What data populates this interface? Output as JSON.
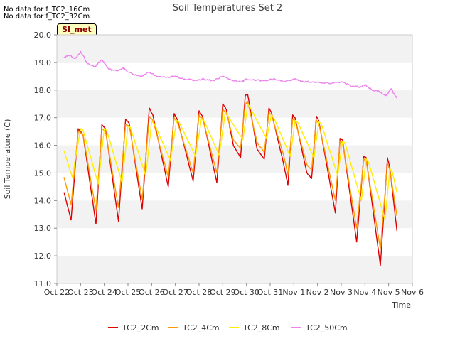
{
  "notes": [
    "No data for f_TC2_16Cm",
    "No data for f_TC2_32Cm"
  ],
  "badge_label": "SI_met",
  "chart_data": {
    "type": "line",
    "title": "Soil Temperatures Set 2",
    "xlabel": "Time",
    "ylabel": "Soil Temperature (C)",
    "ylim": [
      11.0,
      20.0
    ],
    "yticks": [
      "11.0",
      "12.0",
      "13.0",
      "14.0",
      "15.0",
      "16.0",
      "17.0",
      "18.0",
      "19.0",
      "20.0"
    ],
    "xlim_days": [
      0,
      15
    ],
    "xticks": [
      "Oct 22",
      "Oct 23",
      "Oct 24",
      "Oct 25",
      "Oct 26",
      "Oct 27",
      "Oct 28",
      "Oct 29",
      "Oct 30",
      "Oct 31",
      "Nov 1",
      "Nov 2",
      "Nov 3",
      "Nov 4",
      "Nov 5",
      "Nov 6"
    ],
    "legend_position": "bottom",
    "grid": "alternating horizontal bands",
    "series": [
      {
        "name": "TC2_2Cm",
        "color": "#dd0000",
        "points": [
          [
            0.3,
            14.3
          ],
          [
            0.6,
            13.3
          ],
          [
            0.9,
            16.6
          ],
          [
            1.1,
            16.4
          ],
          [
            1.65,
            13.15
          ],
          [
            1.9,
            16.75
          ],
          [
            2.05,
            16.6
          ],
          [
            2.6,
            13.25
          ],
          [
            2.9,
            16.95
          ],
          [
            3.05,
            16.8
          ],
          [
            3.6,
            13.7
          ],
          [
            3.9,
            17.35
          ],
          [
            4.05,
            17.1
          ],
          [
            4.7,
            14.5
          ],
          [
            4.95,
            17.15
          ],
          [
            5.1,
            16.9
          ],
          [
            5.75,
            14.7
          ],
          [
            6.0,
            17.25
          ],
          [
            6.15,
            17.05
          ],
          [
            6.75,
            14.65
          ],
          [
            7.0,
            17.5
          ],
          [
            7.15,
            17.3
          ],
          [
            7.45,
            16.0
          ],
          [
            7.75,
            15.55
          ],
          [
            7.95,
            17.8
          ],
          [
            8.05,
            17.85
          ],
          [
            8.45,
            15.85
          ],
          [
            8.75,
            15.5
          ],
          [
            8.95,
            17.35
          ],
          [
            9.05,
            17.2
          ],
          [
            9.55,
            15.4
          ],
          [
            9.75,
            14.55
          ],
          [
            9.95,
            17.1
          ],
          [
            10.05,
            17.0
          ],
          [
            10.55,
            15.0
          ],
          [
            10.75,
            14.8
          ],
          [
            10.95,
            17.05
          ],
          [
            11.05,
            16.9
          ],
          [
            11.75,
            13.55
          ],
          [
            11.95,
            16.25
          ],
          [
            12.05,
            16.2
          ],
          [
            12.65,
            12.5
          ],
          [
            12.95,
            15.6
          ],
          [
            13.05,
            15.55
          ],
          [
            13.65,
            11.65
          ],
          [
            13.95,
            15.55
          ],
          [
            14.05,
            15.2
          ],
          [
            14.35,
            12.9
          ]
        ]
      },
      {
        "name": "TC2_4Cm",
        "color": "#ff9900",
        "points": [
          [
            0.3,
            14.85
          ],
          [
            0.6,
            13.85
          ],
          [
            0.9,
            16.5
          ],
          [
            1.1,
            16.4
          ],
          [
            1.65,
            13.65
          ],
          [
            1.9,
            16.6
          ],
          [
            2.05,
            16.5
          ],
          [
            2.6,
            13.75
          ],
          [
            2.9,
            16.75
          ],
          [
            3.05,
            16.7
          ],
          [
            3.6,
            14.05
          ],
          [
            3.9,
            17.05
          ],
          [
            4.05,
            16.9
          ],
          [
            4.7,
            14.85
          ],
          [
            4.95,
            17.0
          ],
          [
            5.1,
            16.8
          ],
          [
            5.75,
            15.0
          ],
          [
            6.0,
            17.1
          ],
          [
            6.15,
            16.95
          ],
          [
            6.75,
            15.0
          ],
          [
            7.0,
            17.3
          ],
          [
            7.15,
            17.2
          ],
          [
            7.45,
            16.2
          ],
          [
            7.75,
            15.9
          ],
          [
            7.95,
            17.5
          ],
          [
            8.05,
            17.6
          ],
          [
            8.45,
            16.1
          ],
          [
            8.75,
            15.75
          ],
          [
            8.95,
            17.2
          ],
          [
            9.05,
            17.1
          ],
          [
            9.55,
            15.7
          ],
          [
            9.75,
            14.95
          ],
          [
            9.95,
            16.95
          ],
          [
            10.05,
            16.9
          ],
          [
            10.55,
            15.3
          ],
          [
            10.75,
            15.1
          ],
          [
            10.95,
            16.9
          ],
          [
            11.05,
            16.8
          ],
          [
            11.75,
            14.0
          ],
          [
            11.95,
            16.15
          ],
          [
            12.05,
            16.1
          ],
          [
            12.65,
            13.0
          ],
          [
            12.95,
            15.5
          ],
          [
            13.05,
            15.45
          ],
          [
            13.65,
            12.25
          ],
          [
            13.95,
            15.35
          ],
          [
            14.05,
            15.1
          ],
          [
            14.35,
            13.45
          ]
        ]
      },
      {
        "name": "TC2_8Cm",
        "color": "#ffee00",
        "points": [
          [
            0.3,
            15.8
          ],
          [
            0.65,
            14.85
          ],
          [
            1.0,
            16.6
          ],
          [
            1.1,
            16.55
          ],
          [
            1.75,
            14.6
          ],
          [
            2.0,
            16.6
          ],
          [
            2.1,
            16.55
          ],
          [
            2.75,
            14.65
          ],
          [
            3.0,
            16.7
          ],
          [
            3.1,
            16.65
          ],
          [
            3.75,
            14.9
          ],
          [
            4.0,
            16.85
          ],
          [
            4.1,
            16.8
          ],
          [
            4.8,
            15.45
          ],
          [
            5.05,
            16.9
          ],
          [
            5.15,
            16.85
          ],
          [
            5.85,
            15.6
          ],
          [
            6.1,
            16.95
          ],
          [
            6.2,
            16.9
          ],
          [
            6.85,
            15.65
          ],
          [
            7.1,
            17.15
          ],
          [
            7.2,
            17.1
          ],
          [
            7.85,
            16.2
          ],
          [
            8.05,
            17.45
          ],
          [
            8.1,
            17.45
          ],
          [
            8.85,
            16.25
          ],
          [
            9.05,
            17.1
          ],
          [
            9.15,
            17.0
          ],
          [
            9.85,
            15.6
          ],
          [
            10.05,
            16.9
          ],
          [
            10.15,
            16.85
          ],
          [
            10.85,
            15.55
          ],
          [
            11.05,
            16.85
          ],
          [
            11.15,
            16.8
          ],
          [
            11.85,
            14.9
          ],
          [
            12.05,
            16.15
          ],
          [
            12.15,
            16.1
          ],
          [
            12.85,
            14.0
          ],
          [
            13.05,
            15.5
          ],
          [
            13.15,
            15.4
          ],
          [
            13.85,
            13.3
          ],
          [
            14.05,
            15.15
          ],
          [
            14.15,
            15.05
          ],
          [
            14.35,
            14.3
          ]
        ]
      },
      {
        "name": "TC2_50Cm",
        "color": "#ee82ee",
        "points": [
          [
            0.3,
            19.2
          ],
          [
            0.5,
            19.25
          ],
          [
            0.8,
            19.15
          ],
          [
            1.0,
            19.4
          ],
          [
            1.3,
            18.95
          ],
          [
            1.6,
            18.85
          ],
          [
            1.9,
            19.1
          ],
          [
            2.2,
            18.75
          ],
          [
            2.5,
            18.7
          ],
          [
            2.8,
            18.8
          ],
          [
            3.0,
            18.65
          ],
          [
            3.3,
            18.55
          ],
          [
            3.6,
            18.5
          ],
          [
            3.9,
            18.65
          ],
          [
            4.2,
            18.5
          ],
          [
            4.6,
            18.45
          ],
          [
            5.0,
            18.5
          ],
          [
            5.4,
            18.4
          ],
          [
            5.8,
            18.35
          ],
          [
            6.2,
            18.4
          ],
          [
            6.6,
            18.35
          ],
          [
            7.0,
            18.5
          ],
          [
            7.4,
            18.35
          ],
          [
            7.8,
            18.3
          ],
          [
            8.0,
            18.4
          ],
          [
            8.4,
            18.35
          ],
          [
            8.8,
            18.35
          ],
          [
            9.2,
            18.4
          ],
          [
            9.6,
            18.3
          ],
          [
            10.0,
            18.4
          ],
          [
            10.4,
            18.3
          ],
          [
            10.8,
            18.3
          ],
          [
            11.2,
            18.25
          ],
          [
            11.6,
            18.25
          ],
          [
            12.0,
            18.3
          ],
          [
            12.4,
            18.15
          ],
          [
            12.8,
            18.1
          ],
          [
            13.0,
            18.2
          ],
          [
            13.3,
            18.0
          ],
          [
            13.6,
            17.95
          ],
          [
            13.9,
            17.8
          ],
          [
            14.1,
            18.05
          ],
          [
            14.35,
            17.7
          ]
        ]
      }
    ]
  }
}
